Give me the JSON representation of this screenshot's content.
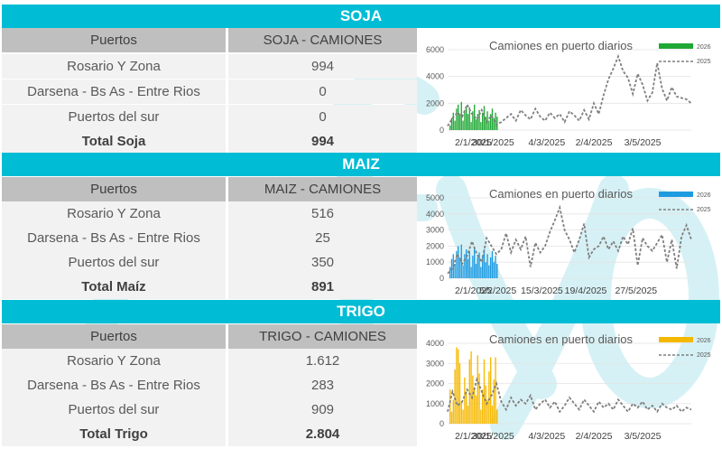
{
  "watermark_color": "#d6f1f5",
  "sections": [
    {
      "id": "soja",
      "title": "SOJA",
      "table": {
        "headers": [
          "Puertos",
          "SOJA - CAMIONES"
        ],
        "rows": [
          [
            "Rosario Y Zona",
            "994"
          ],
          [
            "Darsena - Bs As - Entre Rios",
            "0"
          ],
          [
            "Puertos del sur",
            "0"
          ]
        ],
        "total": [
          "Total Soja",
          "994"
        ]
      }
    },
    {
      "id": "maiz",
      "title": "MAIZ",
      "table": {
        "headers": [
          "Puertos",
          "MAIZ - CAMIONES"
        ],
        "rows": [
          [
            "Rosario Y Zona",
            "516"
          ],
          [
            "Darsena - Bs As - Entre Rios",
            "25"
          ],
          [
            "Puertos del sur",
            "350"
          ]
        ],
        "total": [
          "Total Maíz",
          "891"
        ]
      }
    },
    {
      "id": "trigo",
      "title": "TRIGO",
      "table": {
        "headers": [
          "Puertos",
          "TRIGO - CAMIONES"
        ],
        "rows": [
          [
            "Rosario Y Zona",
            "1.612"
          ],
          [
            "Darsena - Bs As - Entre Rios",
            "283"
          ],
          [
            "Puertos del sur",
            "909"
          ]
        ],
        "total": [
          "Total Trigo",
          "2.804"
        ]
      }
    }
  ],
  "chart_data": [
    {
      "type": "bar",
      "title": "Camiones en puerto diarios",
      "ylim": [
        0,
        6000
      ],
      "yticks": [
        0,
        2000,
        4000,
        6000
      ],
      "x_range": [
        0,
        150
      ],
      "xtick_positions": [
        0,
        28,
        61,
        90,
        120
      ],
      "xtick_labels": [
        "2/1/2025",
        "30/1/2025",
        "4/3/2025",
        "2/4/2025",
        "3/5/2025"
      ],
      "grid": true,
      "legend_position": "top-right",
      "series": [
        {
          "name": "2026",
          "type": "bar",
          "color": "#1fa834",
          "x": [
            0,
            1,
            2,
            3,
            4,
            5,
            6,
            7,
            8,
            9,
            10,
            11,
            12,
            13,
            14,
            15,
            16,
            17,
            18,
            19,
            20,
            21,
            22,
            23,
            24,
            25,
            26,
            27,
            28,
            29
          ],
          "values": [
            350,
            900,
            1300,
            700,
            1600,
            1900,
            1100,
            2100,
            700,
            1500,
            1800,
            1200,
            1700,
            600,
            1400,
            1900,
            800,
            1200,
            1500,
            600,
            1300,
            1800,
            1000,
            1400,
            700,
            1200,
            1600,
            900,
            1300,
            1000
          ]
        },
        {
          "name": "2025",
          "type": "line",
          "dashed": true,
          "color": "#7f7f7f",
          "x": [
            0,
            3,
            6,
            9,
            12,
            15,
            18,
            21,
            24,
            27,
            30,
            33,
            36,
            39,
            42,
            45,
            48,
            51,
            54,
            57,
            60,
            63,
            66,
            69,
            72,
            75,
            78,
            81,
            84,
            87,
            90,
            93,
            96,
            99,
            102,
            105,
            108,
            111,
            114,
            117,
            120,
            123,
            126,
            129,
            132,
            135,
            138,
            141,
            144,
            147,
            150
          ],
          "values": [
            300,
            900,
            1300,
            1000,
            1900,
            1200,
            800,
            1500,
            600,
            1100,
            400,
            600,
            900,
            1200,
            700,
            1500,
            1100,
            800,
            1600,
            1000,
            700,
            1300,
            900,
            1200,
            600,
            1400,
            1100,
            700,
            1500,
            800,
            2000,
            1200,
            2600,
            3800,
            4600,
            5500,
            4400,
            3900,
            2700,
            4200,
            3400,
            2200,
            2800,
            5000,
            3100,
            2200,
            3200,
            2500,
            2400,
            2300,
            2000
          ]
        }
      ]
    },
    {
      "type": "bar",
      "title": "Camiones en puerto diarios",
      "ylim": [
        0,
        5000
      ],
      "yticks": [
        0,
        1000,
        2000,
        3000,
        4000,
        5000
      ],
      "x_range": [
        0,
        150
      ],
      "xtick_positions": [
        0,
        31,
        58,
        85,
        116
      ],
      "xtick_labels": [
        "2/1/2025",
        "5/2/2025",
        "15/3/2025",
        "19/4/2025",
        "27/5/2025"
      ],
      "grid": true,
      "legend_position": "top-right",
      "series": [
        {
          "name": "2026",
          "type": "bar",
          "color": "#1e9be0",
          "x": [
            0,
            1,
            2,
            3,
            4,
            5,
            6,
            7,
            8,
            9,
            10,
            11,
            12,
            13,
            14,
            15,
            16,
            17,
            18,
            19,
            20,
            21,
            22,
            23,
            24,
            25,
            26,
            27,
            28,
            29
          ],
          "values": [
            700,
            1200,
            1500,
            900,
            1700,
            2000,
            1300,
            2100,
            800,
            1500,
            1800,
            1200,
            1700,
            700,
            1400,
            1900,
            900,
            1300,
            1600,
            700,
            1400,
            1800,
            1000,
            1500,
            800,
            1300,
            1700,
            1000,
            1400,
            900
          ]
        },
        {
          "name": "2025",
          "type": "line",
          "dashed": true,
          "color": "#7f7f7f",
          "x": [
            0,
            3,
            6,
            9,
            12,
            15,
            18,
            21,
            24,
            27,
            30,
            33,
            36,
            39,
            42,
            45,
            48,
            51,
            54,
            57,
            60,
            63,
            66,
            69,
            72,
            75,
            78,
            81,
            84,
            87,
            90,
            93,
            96,
            99,
            102,
            105,
            108,
            111,
            114,
            117,
            120,
            123,
            126,
            129,
            132,
            135,
            138,
            141,
            144,
            147,
            150
          ],
          "values": [
            300,
            600,
            1500,
            900,
            1400,
            2300,
            1500,
            1000,
            2500,
            2000,
            1500,
            1800,
            2800,
            1600,
            2400,
            1800,
            2600,
            700,
            2200,
            1600,
            2000,
            2900,
            3600,
            4400,
            3000,
            2400,
            1600,
            2400,
            3400,
            1300,
            1800,
            2000,
            2600,
            1800,
            2300,
            1700,
            2600,
            2100,
            3100,
            800,
            2500,
            2000,
            1700,
            2200,
            2700,
            1000,
            2400,
            600,
            2600,
            3300,
            2400
          ]
        }
      ]
    },
    {
      "type": "bar",
      "title": "Camiones en puerto diarios",
      "ylim": [
        0,
        4000
      ],
      "yticks": [
        0,
        1000,
        2000,
        3000,
        4000
      ],
      "x_range": [
        0,
        150
      ],
      "xtick_positions": [
        0,
        28,
        61,
        90,
        120
      ],
      "xtick_labels": [
        "2/1/2025",
        "30/1/2025",
        "4/3/2025",
        "2/4/2025",
        "3/5/2025"
      ],
      "grid": true,
      "legend_position": "top-right",
      "series": [
        {
          "name": "2026",
          "type": "bar",
          "color": "#f5b800",
          "x": [
            0,
            1,
            2,
            3,
            4,
            5,
            6,
            7,
            8,
            9,
            10,
            11,
            12,
            13,
            14,
            15,
            16,
            17,
            18,
            19,
            20,
            21,
            22,
            23,
            24,
            25,
            26,
            27,
            28,
            29
          ],
          "values": [
            1700,
            600,
            1200,
            2700,
            3800,
            3700,
            3000,
            1100,
            700,
            2300,
            1600,
            900,
            3200,
            3600,
            2400,
            1800,
            1400,
            3400,
            2500,
            700,
            1700,
            3200,
            1900,
            1200,
            2600,
            3300,
            900,
            2200,
            3300,
            700
          ]
        },
        {
          "name": "2025",
          "type": "line",
          "dashed": true,
          "color": "#7f7f7f",
          "x": [
            0,
            3,
            6,
            9,
            12,
            15,
            18,
            21,
            24,
            27,
            30,
            33,
            36,
            39,
            42,
            45,
            48,
            51,
            54,
            57,
            60,
            63,
            66,
            69,
            72,
            75,
            78,
            81,
            84,
            87,
            90,
            93,
            96,
            99,
            102,
            105,
            108,
            111,
            114,
            117,
            120,
            123,
            126,
            129,
            132,
            135,
            138,
            141,
            144,
            147,
            150
          ],
          "values": [
            600,
            1600,
            900,
            1100,
            1700,
            1300,
            2200,
            1600,
            1000,
            1400,
            2000,
            1100,
            700,
            1300,
            900,
            1200,
            1000,
            1400,
            700,
            1000,
            1200,
            800,
            1100,
            600,
            900,
            1300,
            1000,
            700,
            1200,
            900,
            600,
            1100,
            800,
            1000,
            700,
            1200,
            900,
            600,
            1000,
            800,
            1100,
            700,
            900,
            600,
            1000,
            800,
            700,
            900,
            600,
            800,
            700
          ]
        }
      ]
    }
  ]
}
